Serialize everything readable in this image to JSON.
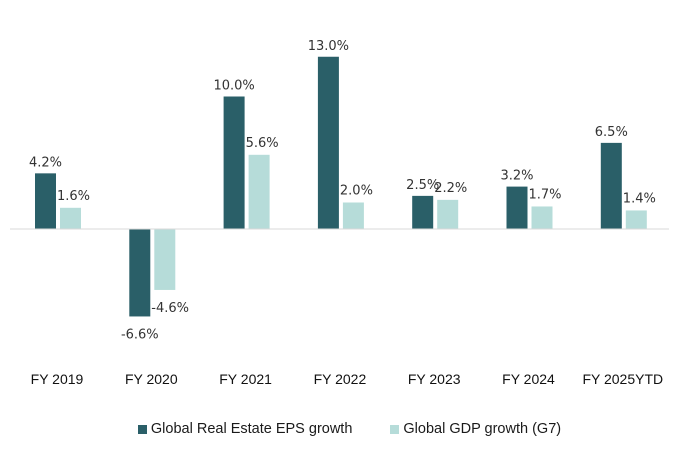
{
  "chart_data": {
    "type": "bar",
    "title": "",
    "xlabel": "",
    "ylabel": "",
    "categories": [
      "FY 2019",
      "FY 2020",
      "FY 2021",
      "FY 2022",
      "FY 2023",
      "FY 2024",
      "FY 2025YTD"
    ],
    "series": [
      {
        "name": "Global Real Estate EPS growth",
        "color": "#2a5f68",
        "values": [
          4.2,
          -6.6,
          10.0,
          13.0,
          2.5,
          3.2,
          6.5
        ],
        "labels": [
          "4.2%",
          "-6.6%",
          "10.0%",
          "13.0%",
          "2.5%",
          "3.2%",
          "6.5%"
        ]
      },
      {
        "name": "Global GDP growth (G7)",
        "color": "#b6dcd9",
        "values": [
          1.6,
          -4.6,
          5.6,
          2.0,
          2.2,
          1.7,
          1.4
        ],
        "labels": [
          "1.6%",
          "-4.6%",
          "5.6%",
          "2.0%",
          "2.2%",
          "1.7%",
          "1.4%"
        ]
      }
    ],
    "ylim": [
      -13,
      17
    ],
    "grid": false,
    "y_axis_visible": false,
    "legend_position": "bottom",
    "axis_line_color": "#d9d9d9"
  }
}
